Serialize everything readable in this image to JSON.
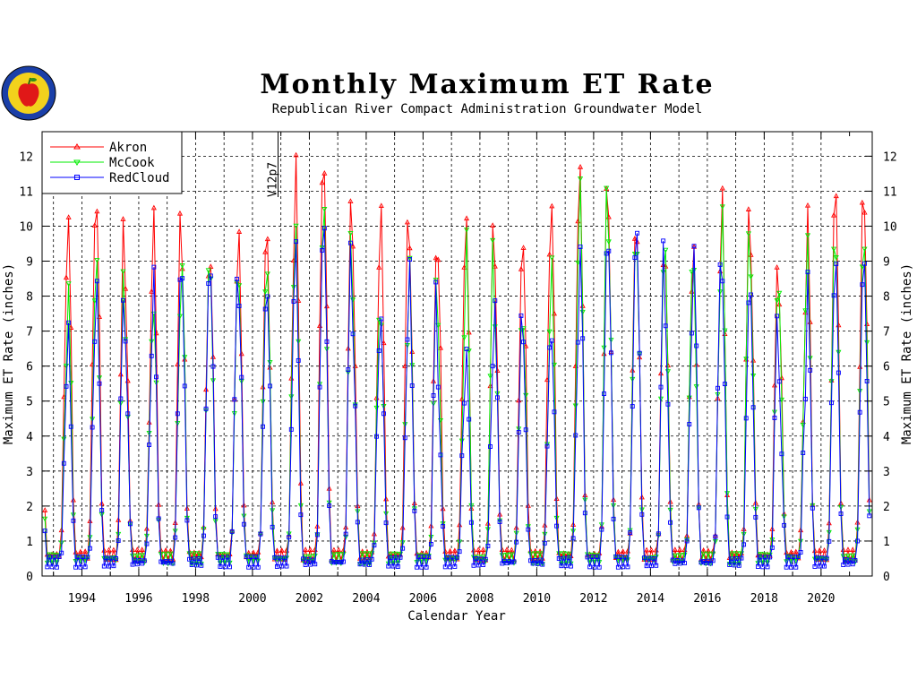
{
  "logo": {
    "ring_text": "REPUBLICAN RIVER",
    "years": "1943 - 2003"
  },
  "header": {
    "title": "Monthly Maximum ET Rate",
    "subtitle": "Republican River Compact Administration Groundwater Model"
  },
  "chart_data": {
    "type": "line",
    "title": "Monthly Maximum ET Rate",
    "subtitle": "Republican River Compact Administration Groundwater Model",
    "xlabel": "Calendar Year",
    "ylabel": "Maximum ET Rate (inches)",
    "xlim": [
      1992.6,
      2021.8
    ],
    "ylim": [
      0,
      12.7
    ],
    "x_ticks": [
      1994,
      1996,
      1998,
      2000,
      2002,
      2004,
      2006,
      2008,
      2010,
      2012,
      2014,
      2016,
      2018,
      2020
    ],
    "y_ticks": [
      0,
      1,
      2,
      3,
      4,
      5,
      6,
      7,
      8,
      9,
      10,
      11,
      12
    ],
    "grid": true,
    "legend_position": "top-left",
    "annotation": {
      "text": "V12p7",
      "x": 2000.9
    },
    "series": [
      {
        "name": "Akron",
        "color": "#ff0000",
        "marker": "triangle-up",
        "x_start": 1992.7,
        "step": 0.08333,
        "peaks": [
          9.0,
          11.0,
          11.0,
          8.3,
          10.9,
          9.5,
          9.3,
          9.8,
          9.7,
          12.6,
          11.9,
          9.3,
          10.7,
          10.0,
          9.6,
          10.4,
          9.1,
          10.1,
          11.2,
          11.8,
          10.3,
          10.0,
          9.2,
          9.3,
          11.1,
          9.7,
          8.3,
          10.8,
          11.1
        ],
        "peak_month": 6,
        "base": 0.6
      },
      {
        "name": "McCook",
        "color": "#00ee00",
        "marker": "triangle-down",
        "x_start": 1992.7,
        "step": 0.08333,
        "peaks": [
          6.9,
          8.4,
          9.0,
          7.2,
          8.2,
          9.2,
          8.6,
          8.8,
          9.3,
          10.2,
          10.4,
          8.1,
          7.6,
          9.2,
          7.0,
          10.3,
          7.8,
          7.4,
          9.2,
          11.9,
          10.3,
          9.5,
          9.2,
          8.9,
          11.1,
          8.7,
          7.9,
          10.0,
          9.8
        ],
        "peak_month": 6,
        "base": 0.5
      },
      {
        "name": "RedCloud",
        "color": "#0000ff",
        "marker": "square",
        "x_start": 1992.7,
        "step": 0.08333,
        "peaks": [
          5.7,
          7.2,
          8.9,
          7.0,
          8.8,
          8.7,
          9.3,
          8.3,
          8.1,
          9.8,
          10.6,
          7.3,
          7.2,
          9.0,
          5.7,
          6.8,
          7.8,
          6.7,
          7.3,
          10.1,
          9.5,
          10.0,
          7.7,
          10.0,
          8.4,
          7.9,
          5.8,
          9.1,
          8.9
        ],
        "peak_month": 6,
        "base": 0.4
      }
    ]
  }
}
